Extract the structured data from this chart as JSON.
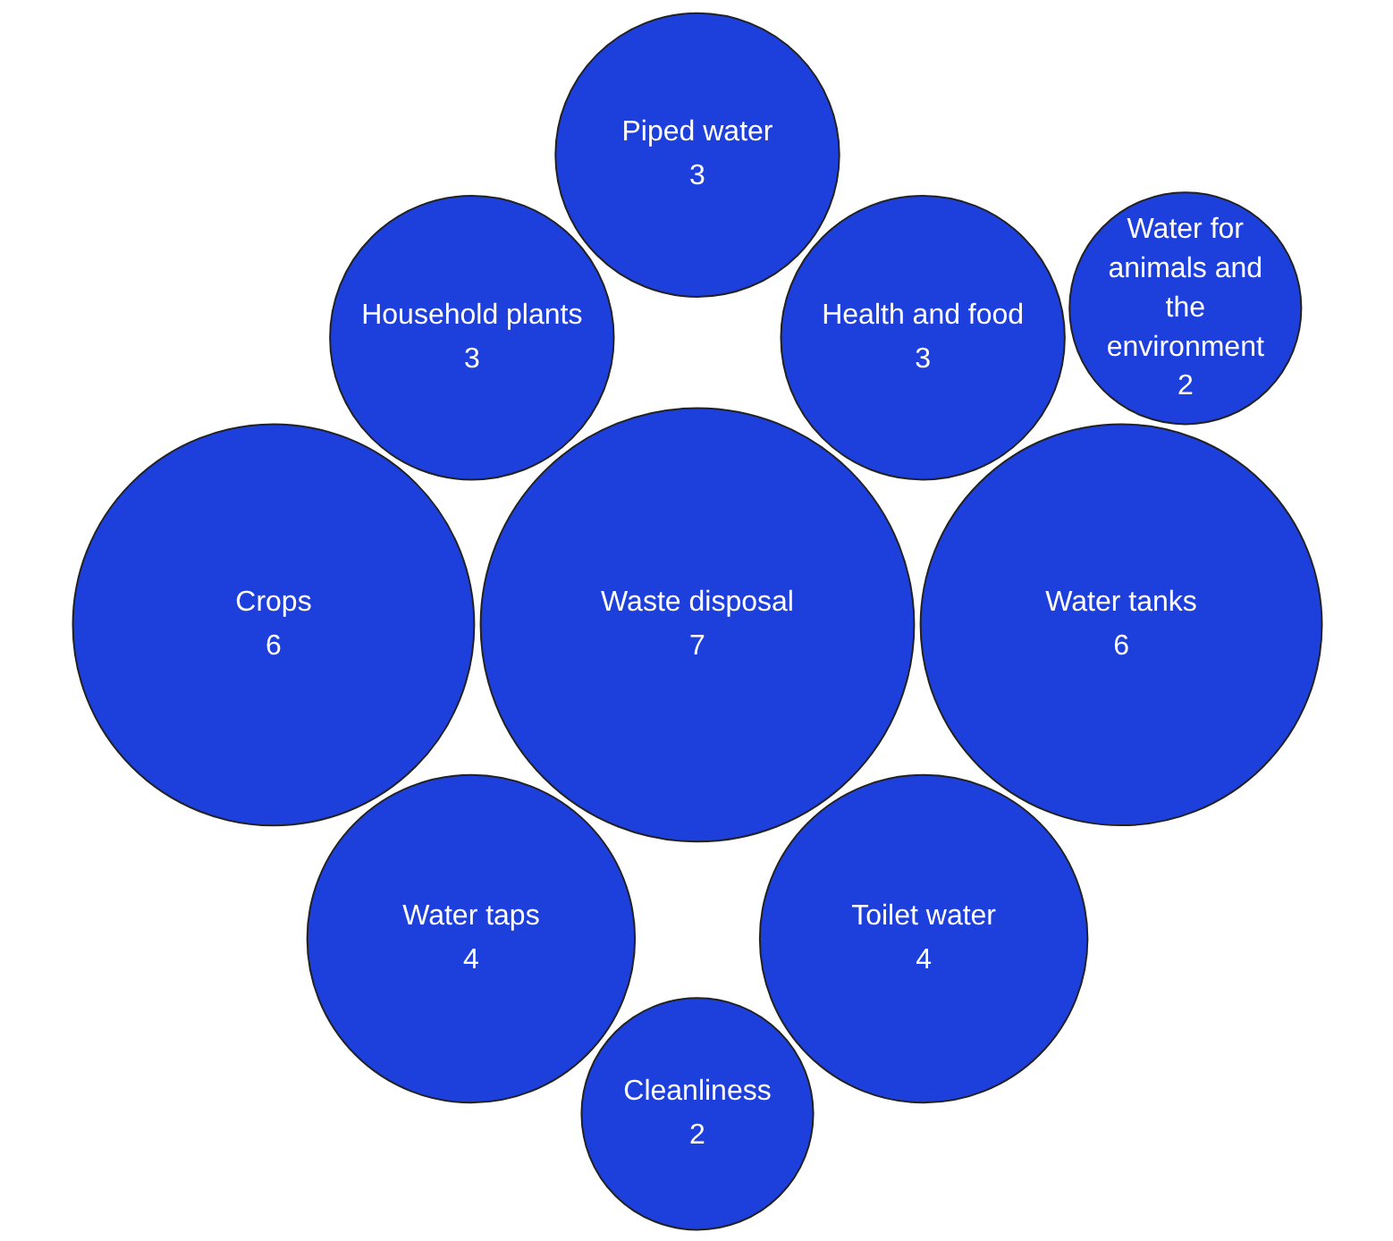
{
  "chart_data": {
    "type": "other",
    "categories": [
      "Water taps",
      "Toilet water",
      "Health and food",
      "Cleanliness",
      "Water for animals and the environment",
      "Waste disposal",
      "Water tanks",
      "Household plants",
      "Crops",
      "Piped water"
    ],
    "values": [
      4,
      4,
      3,
      2,
      2,
      7,
      6,
      3,
      6,
      3
    ],
    "color": "#1d3fdc",
    "data_labels": true
  }
}
